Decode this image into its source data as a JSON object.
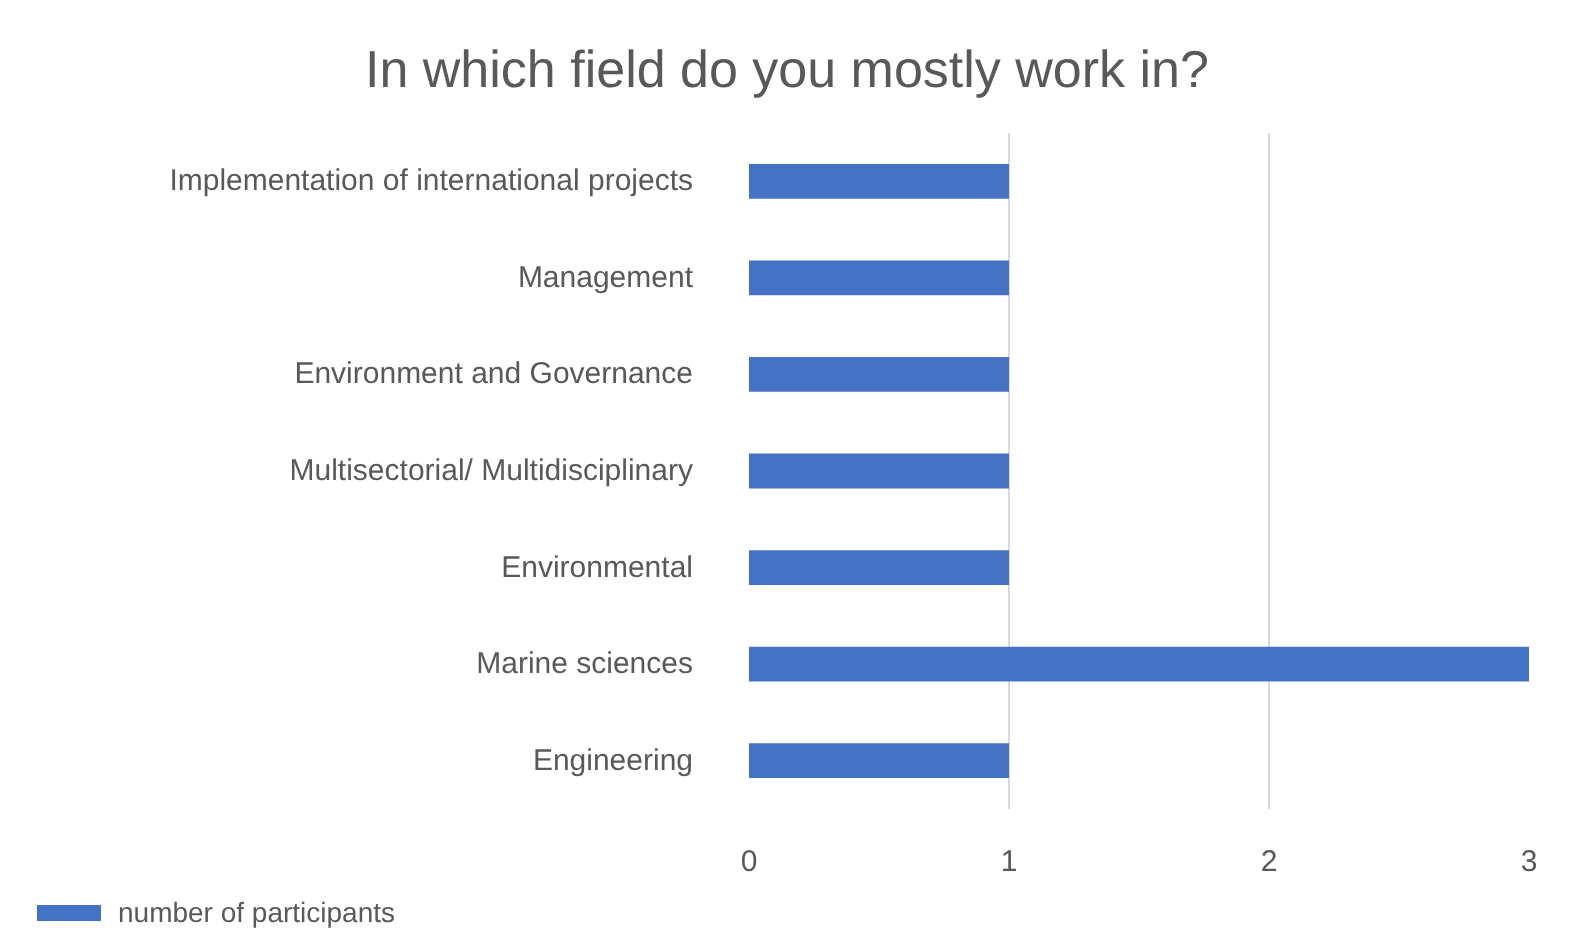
{
  "chart_data": {
    "type": "bar",
    "orientation": "horizontal",
    "title": "In which field do you mostly work in?",
    "categories": [
      "Implementation of international projects",
      "Management",
      "Environment and Governance",
      "Multisectorial/ Multidisciplinary",
      "Environmental",
      "Marine sciences",
      "Engineering"
    ],
    "series": [
      {
        "name": "number of participants",
        "color": "#4472c4",
        "values": [
          1,
          1,
          1,
          1,
          1,
          3,
          1
        ]
      }
    ],
    "xlim": [
      0,
      3
    ],
    "xticks": [
      0,
      1,
      2,
      3
    ],
    "grid": "x",
    "legend": "bottom left"
  }
}
